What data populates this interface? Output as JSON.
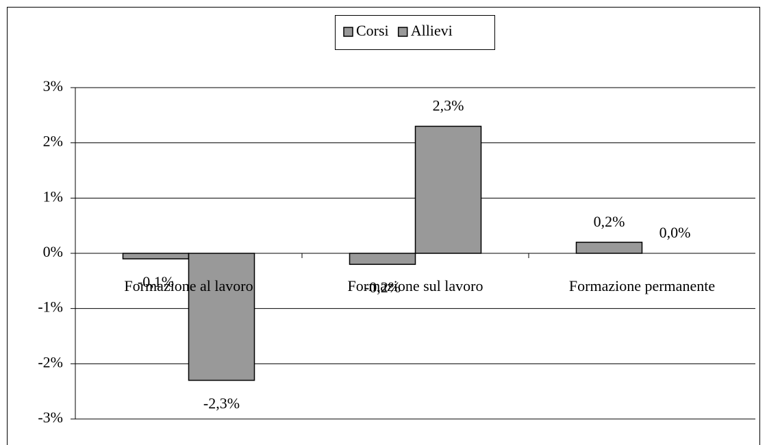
{
  "chart_data": {
    "type": "bar",
    "categories": [
      "Formazione al lavoro",
      "Formazione sul lavoro",
      "Formazione permanente"
    ],
    "series": [
      {
        "name": "Corsi",
        "color": "#999999",
        "values": [
          -0.1,
          -0.2,
          0.2
        ],
        "value_labels": [
          "-0,1%",
          "-0,2%",
          "0,2%"
        ]
      },
      {
        "name": "Allievi",
        "color": "#999999",
        "values": [
          -2.3,
          2.3,
          0.0
        ],
        "value_labels": [
          "-2,3%",
          "2,3%",
          "0,0%"
        ]
      }
    ],
    "ylim": [
      -3,
      3
    ],
    "yticks": [
      {
        "value": -3,
        "label": "-3%"
      },
      {
        "value": -2,
        "label": "-2%"
      },
      {
        "value": -1,
        "label": "-1%"
      },
      {
        "value": 0,
        "label": "0%"
      },
      {
        "value": 1,
        "label": "1%"
      },
      {
        "value": 2,
        "label": "2%"
      },
      {
        "value": 3,
        "label": "3%"
      }
    ],
    "grid": true,
    "legend": "top"
  }
}
